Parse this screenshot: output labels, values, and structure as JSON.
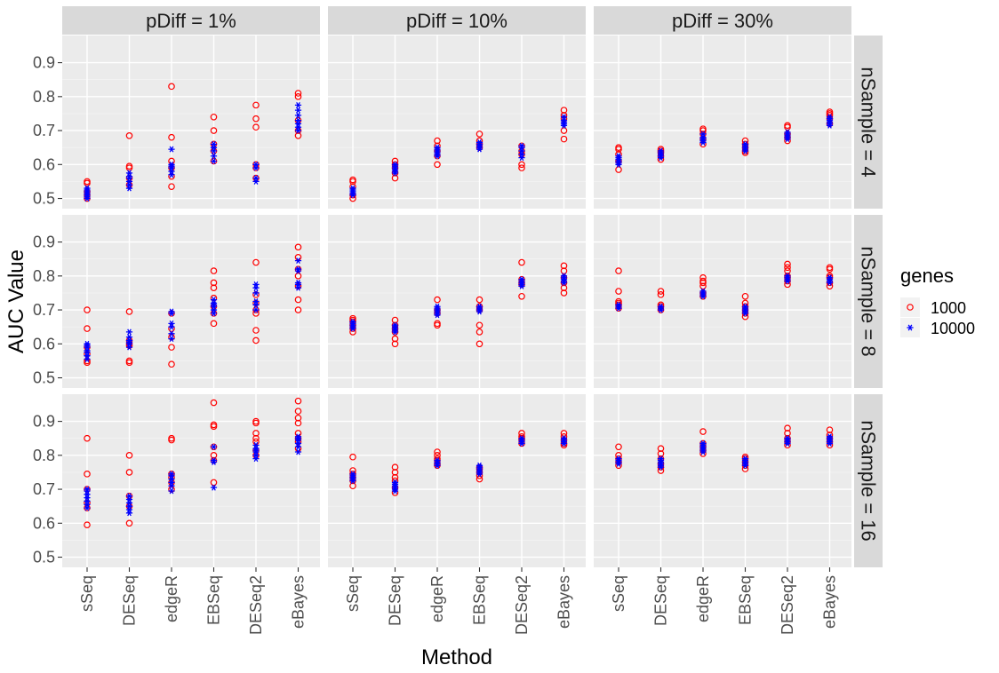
{
  "chart_data": {
    "type": "scatter",
    "xlabel": "Method",
    "ylabel": "AUC Value",
    "categories": [
      "sSeq",
      "DESeq",
      "edgeR",
      "EBSeq",
      "DESeq2",
      "eBayes"
    ],
    "ylim": [
      0.47,
      0.98
    ],
    "yticks": [
      0.5,
      0.6,
      0.7,
      0.8,
      0.9
    ],
    "ytick_labels": [
      "0.5",
      "0.6",
      "0.7",
      "0.8",
      "0.9"
    ],
    "grid": true,
    "col_facets": [
      "pDiff = 1%",
      "pDiff = 10%",
      "pDiff = 30%"
    ],
    "row_facets": [
      "nSample = 4",
      "nSample = 8",
      "nSample = 16"
    ],
    "legend": {
      "title": "genes",
      "position": "right",
      "entries": [
        {
          "label": "1000",
          "color": "#ff0000",
          "shape": "open-circle"
        },
        {
          "label": "10000",
          "color": "#0000ff",
          "shape": "asterisk"
        }
      ]
    },
    "panels": [
      {
        "row": 0,
        "col": 0,
        "series": {
          "1000": [
            [
              0.5,
              0.51,
              0.52,
              0.545,
              0.55
            ],
            [
              0.54,
              0.56,
              0.59,
              0.595,
              0.685
            ],
            [
              0.535,
              0.565,
              0.59,
              0.61,
              0.68,
              0.83
            ],
            [
              0.61,
              0.64,
              0.66,
              0.7,
              0.74
            ],
            [
              0.56,
              0.59,
              0.6,
              0.71,
              0.735,
              0.775
            ],
            [
              0.685,
              0.7,
              0.73,
              0.8,
              0.81
            ]
          ],
          "10000": [
            [
              0.5,
              0.505,
              0.51,
              0.515,
              0.52,
              0.525,
              0.53
            ],
            [
              0.53,
              0.54,
              0.55,
              0.56,
              0.565,
              0.575
            ],
            [
              0.57,
              0.58,
              0.59,
              0.595,
              0.6,
              0.645
            ],
            [
              0.61,
              0.625,
              0.64,
              0.65,
              0.66
            ],
            [
              0.55,
              0.56,
              0.59,
              0.6
            ],
            [
              0.7,
              0.71,
              0.72,
              0.73,
              0.745,
              0.76,
              0.775
            ]
          ]
        }
      },
      {
        "row": 0,
        "col": 1,
        "series": {
          "1000": [
            [
              0.5,
              0.51,
              0.535,
              0.55,
              0.555
            ],
            [
              0.56,
              0.575,
              0.59,
              0.6,
              0.61
            ],
            [
              0.6,
              0.625,
              0.64,
              0.655,
              0.67
            ],
            [
              0.65,
              0.66,
              0.67,
              0.69
            ],
            [
              0.59,
              0.6,
              0.63,
              0.64,
              0.655
            ],
            [
              0.675,
              0.7,
              0.735,
              0.745,
              0.76
            ]
          ],
          "10000": [
            [
              0.51,
              0.515,
              0.52,
              0.525,
              0.53
            ],
            [
              0.575,
              0.58,
              0.585,
              0.59,
              0.595,
              0.6
            ],
            [
              0.625,
              0.63,
              0.635,
              0.64,
              0.645,
              0.65
            ],
            [
              0.645,
              0.65,
              0.655,
              0.66,
              0.665
            ],
            [
              0.62,
              0.63,
              0.64,
              0.65,
              0.655
            ],
            [
              0.715,
              0.72,
              0.725,
              0.73,
              0.74
            ]
          ]
        }
      },
      {
        "row": 0,
        "col": 2,
        "series": {
          "1000": [
            [
              0.585,
              0.61,
              0.63,
              0.645,
              0.65
            ],
            [
              0.615,
              0.625,
              0.635,
              0.64,
              0.645
            ],
            [
              0.66,
              0.675,
              0.69,
              0.7,
              0.705
            ],
            [
              0.635,
              0.64,
              0.65,
              0.66,
              0.67
            ],
            [
              0.67,
              0.68,
              0.69,
              0.71,
              0.715
            ],
            [
              0.72,
              0.735,
              0.745,
              0.75,
              0.755
            ]
          ],
          "10000": [
            [
              0.6,
              0.605,
              0.61,
              0.615,
              0.62,
              0.625
            ],
            [
              0.62,
              0.625,
              0.63,
              0.635,
              0.64
            ],
            [
              0.665,
              0.67,
              0.675,
              0.68,
              0.69
            ],
            [
              0.64,
              0.645,
              0.65,
              0.655,
              0.66
            ],
            [
              0.675,
              0.68,
              0.685,
              0.69,
              0.695
            ],
            [
              0.715,
              0.72,
              0.725,
              0.73,
              0.735,
              0.74
            ]
          ]
        }
      },
      {
        "row": 1,
        "col": 0,
        "series": {
          "1000": [
            [
              0.545,
              0.55,
              0.57,
              0.59,
              0.645,
              0.7
            ],
            [
              0.545,
              0.55,
              0.595,
              0.6,
              0.61,
              0.695
            ],
            [
              0.54,
              0.59,
              0.62,
              0.645,
              0.69
            ],
            [
              0.66,
              0.69,
              0.71,
              0.735,
              0.765,
              0.78,
              0.815
            ],
            [
              0.61,
              0.64,
              0.69,
              0.7,
              0.72,
              0.745,
              0.84
            ],
            [
              0.7,
              0.73,
              0.77,
              0.8,
              0.82,
              0.855,
              0.885
            ]
          ],
          "10000": [
            [
              0.555,
              0.565,
              0.575,
              0.58,
              0.59,
              0.595,
              0.6
            ],
            [
              0.59,
              0.6,
              0.605,
              0.61,
              0.62,
              0.635
            ],
            [
              0.615,
              0.63,
              0.65,
              0.66,
              0.69,
              0.695
            ],
            [
              0.69,
              0.7,
              0.71,
              0.715,
              0.72,
              0.73
            ],
            [
              0.7,
              0.715,
              0.725,
              0.75,
              0.765,
              0.775
            ],
            [
              0.765,
              0.775,
              0.78,
              0.815,
              0.82,
              0.845
            ]
          ]
        }
      },
      {
        "row": 1,
        "col": 1,
        "series": {
          "1000": [
            [
              0.635,
              0.645,
              0.655,
              0.665,
              0.67,
              0.675
            ],
            [
              0.6,
              0.615,
              0.635,
              0.645,
              0.655,
              0.67
            ],
            [
              0.655,
              0.66,
              0.69,
              0.7,
              0.73
            ],
            [
              0.6,
              0.635,
              0.655,
              0.7,
              0.71,
              0.73
            ],
            [
              0.74,
              0.775,
              0.78,
              0.79,
              0.84
            ],
            [
              0.75,
              0.765,
              0.78,
              0.795,
              0.815,
              0.83
            ]
          ],
          "10000": [
            [
              0.645,
              0.65,
              0.655,
              0.66,
              0.665
            ],
            [
              0.635,
              0.64,
              0.645,
              0.65,
              0.655
            ],
            [
              0.685,
              0.69,
              0.695,
              0.7,
              0.705,
              0.71
            ],
            [
              0.695,
              0.7,
              0.705,
              0.71
            ],
            [
              0.77,
              0.775,
              0.78,
              0.785,
              0.79
            ],
            [
              0.78,
              0.785,
              0.79,
              0.795,
              0.8
            ]
          ]
        }
      },
      {
        "row": 1,
        "col": 2,
        "series": {
          "1000": [
            [
              0.705,
              0.715,
              0.72,
              0.725,
              0.755,
              0.815
            ],
            [
              0.7,
              0.71,
              0.715,
              0.745,
              0.755
            ],
            [
              0.74,
              0.75,
              0.77,
              0.78,
              0.785,
              0.795
            ],
            [
              0.68,
              0.69,
              0.7,
              0.71,
              0.72,
              0.74
            ],
            [
              0.775,
              0.785,
              0.795,
              0.8,
              0.815,
              0.825,
              0.835
            ],
            [
              0.77,
              0.78,
              0.795,
              0.8,
              0.82,
              0.825
            ]
          ],
          "10000": [
            [
              0.705,
              0.71,
              0.715
            ],
            [
              0.7,
              0.705,
              0.71
            ],
            [
              0.74,
              0.745,
              0.75,
              0.755
            ],
            [
              0.69,
              0.695,
              0.7,
              0.705,
              0.71
            ],
            [
              0.785,
              0.79,
              0.795,
              0.8
            ],
            [
              0.78,
              0.785,
              0.79,
              0.795
            ]
          ]
        }
      },
      {
        "row": 2,
        "col": 0,
        "series": {
          "1000": [
            [
              0.595,
              0.645,
              0.66,
              0.7,
              0.745,
              0.85
            ],
            [
              0.6,
              0.65,
              0.68,
              0.75,
              0.8
            ],
            [
              0.7,
              0.72,
              0.735,
              0.745,
              0.845,
              0.85
            ],
            [
              0.72,
              0.785,
              0.8,
              0.825,
              0.885,
              0.89,
              0.955
            ],
            [
              0.8,
              0.815,
              0.84,
              0.85,
              0.865,
              0.895,
              0.9
            ],
            [
              0.82,
              0.84,
              0.85,
              0.865,
              0.895,
              0.91,
              0.93,
              0.96
            ]
          ],
          "10000": [
            [
              0.645,
              0.655,
              0.665,
              0.675,
              0.685,
              0.695,
              0.7
            ],
            [
              0.63,
              0.64,
              0.65,
              0.66,
              0.67,
              0.68
            ],
            [
              0.695,
              0.71,
              0.72,
              0.73,
              0.74,
              0.745
            ],
            [
              0.705,
              0.78,
              0.785,
              0.825
            ],
            [
              0.79,
              0.8,
              0.81,
              0.815,
              0.82,
              0.83
            ],
            [
              0.81,
              0.825,
              0.835,
              0.845,
              0.85,
              0.855
            ]
          ]
        }
      },
      {
        "row": 2,
        "col": 1,
        "series": {
          "1000": [
            [
              0.71,
              0.725,
              0.735,
              0.745,
              0.755,
              0.795
            ],
            [
              0.69,
              0.705,
              0.725,
              0.735,
              0.75,
              0.765
            ],
            [
              0.77,
              0.775,
              0.785,
              0.79,
              0.8,
              0.81
            ],
            [
              0.73,
              0.74,
              0.75,
              0.76,
              0.765
            ],
            [
              0.835,
              0.845,
              0.85,
              0.855,
              0.865
            ],
            [
              0.83,
              0.835,
              0.845,
              0.855,
              0.865
            ]
          ],
          "10000": [
            [
              0.725,
              0.73,
              0.735,
              0.74,
              0.745
            ],
            [
              0.695,
              0.7,
              0.705,
              0.71,
              0.715,
              0.72
            ],
            [
              0.77,
              0.775,
              0.78,
              0.785
            ],
            [
              0.745,
              0.75,
              0.755,
              0.76,
              0.765,
              0.77
            ],
            [
              0.835,
              0.84,
              0.845,
              0.85
            ],
            [
              0.835,
              0.84,
              0.845,
              0.85
            ]
          ]
        }
      },
      {
        "row": 2,
        "col": 2,
        "series": {
          "1000": [
            [
              0.77,
              0.78,
              0.79,
              0.8,
              0.825
            ],
            [
              0.755,
              0.765,
              0.775,
              0.79,
              0.805,
              0.82
            ],
            [
              0.805,
              0.815,
              0.825,
              0.835,
              0.87
            ],
            [
              0.76,
              0.77,
              0.78,
              0.79,
              0.795
            ],
            [
              0.83,
              0.84,
              0.85,
              0.865,
              0.88
            ],
            [
              0.83,
              0.84,
              0.85,
              0.86,
              0.875
            ]
          ],
          "10000": [
            [
              0.775,
              0.78,
              0.785,
              0.79
            ],
            [
              0.765,
              0.77,
              0.775,
              0.78,
              0.785,
              0.79
            ],
            [
              0.81,
              0.815,
              0.82,
              0.825,
              0.83,
              0.835
            ],
            [
              0.77,
              0.775,
              0.78,
              0.785,
              0.79
            ],
            [
              0.835,
              0.84,
              0.845,
              0.85
            ],
            [
              0.835,
              0.84,
              0.845,
              0.85,
              0.855
            ]
          ]
        }
      }
    ]
  }
}
